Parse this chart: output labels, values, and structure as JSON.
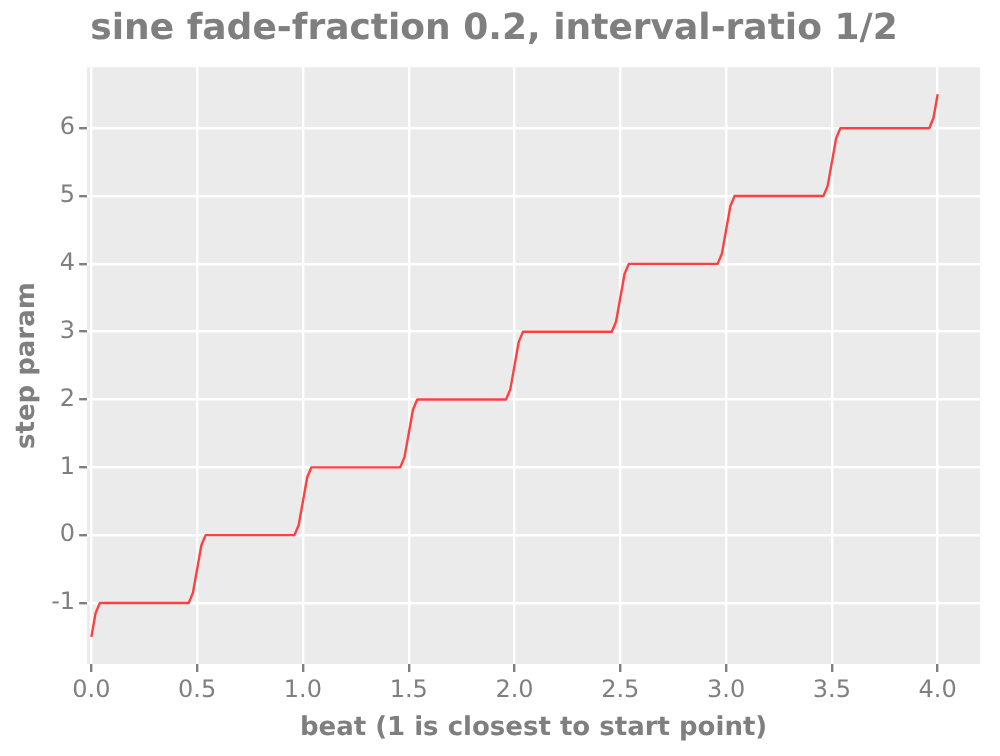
{
  "chart_data": {
    "type": "line",
    "title": "sine fade-fraction 0.2, interval-ratio 1/2",
    "xlabel": "beat (1 is closest to start point)",
    "ylabel": "step param",
    "x": [
      0,
      0.02,
      0.04,
      0.46,
      0.48,
      0.5,
      0.52,
      0.54,
      0.96,
      0.98,
      1,
      1.02,
      1.04,
      1.46,
      1.48,
      1.5,
      1.52,
      1.54,
      1.96,
      1.98,
      2,
      2.02,
      2.04,
      2.46,
      2.48,
      2.5,
      2.52,
      2.54,
      2.96,
      2.98,
      3,
      3.02,
      3.04,
      3.46,
      3.48,
      3.5,
      3.52,
      3.54,
      3.96,
      3.98,
      4
    ],
    "series": [
      {
        "color": "#ff4040",
        "values": [
          -1.5,
          -1.15,
          -1,
          -1,
          -0.85,
          -0.5,
          -0.15,
          0,
          0,
          0.15,
          0.5,
          0.85,
          1,
          1,
          1.15,
          1.5,
          1.85,
          2,
          2,
          2.15,
          2.5,
          2.85,
          3,
          3,
          3.15,
          3.5,
          3.85,
          4,
          4,
          4.15,
          4.5,
          4.85,
          5,
          5,
          5.15,
          5.5,
          5.85,
          6,
          6,
          6.15,
          6.5
        ]
      }
    ],
    "xlim": [
      -0.02,
      4.2
    ],
    "ylim": [
      -1.9,
      6.9
    ],
    "xticks": [
      {
        "value": 0,
        "label": "0.0"
      },
      {
        "value": 0.5,
        "label": "0.5"
      },
      {
        "value": 1,
        "label": "1.0"
      },
      {
        "value": 1.5,
        "label": "1.5"
      },
      {
        "value": 2,
        "label": "2.0"
      },
      {
        "value": 2.5,
        "label": "2.5"
      },
      {
        "value": 3,
        "label": "3.0"
      },
      {
        "value": 3.5,
        "label": "3.5"
      },
      {
        "value": 4,
        "label": "4.0"
      }
    ],
    "yticks": [
      -1,
      0,
      1,
      2,
      3,
      4,
      5,
      6
    ],
    "grid": true,
    "legend": false,
    "marker": "none",
    "line_style": "solid"
  }
}
